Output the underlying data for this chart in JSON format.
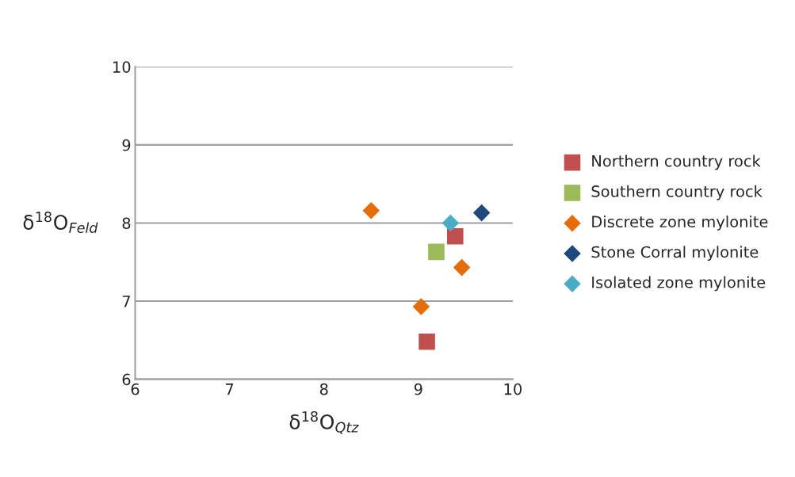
{
  "chart_data": {
    "type": "scatter",
    "xlabel": "δ$^{18}$O$_{Qtz}$",
    "ylabel": "δ$^{18}$O$_{Feld}$",
    "xlim": [
      6,
      10
    ],
    "xticks": [
      6,
      7,
      8,
      9,
      10
    ],
    "ylim": [
      6,
      10
    ],
    "yticks": [
      6,
      7,
      8,
      9,
      10
    ],
    "grid": "y",
    "legend": "right",
    "series": [
      {
        "name": "Northern country rock",
        "color": "#c0504d",
        "marker": "square",
        "x": [
          9.39,
          9.09
        ],
        "values": [
          7.83,
          6.48
        ]
      },
      {
        "name": "Southern country rock",
        "color": "#9bbb59",
        "marker": "square",
        "x": [
          9.19
        ],
        "values": [
          7.63
        ]
      },
      {
        "name": "Discrete zone mylonite",
        "color": "#e46c0a",
        "marker": "diamond",
        "x": [
          8.5,
          9.03,
          9.46
        ],
        "values": [
          8.16,
          6.93,
          7.43
        ]
      },
      {
        "name": "Stone Corral mylonite",
        "color": "#1f497d",
        "marker": "diamond",
        "x": [
          9.67
        ],
        "values": [
          8.13
        ]
      },
      {
        "name": "Isolated zone mylonite",
        "color": "#4bacc6",
        "marker": "diamond",
        "x": [
          9.34
        ],
        "values": [
          8.0
        ]
      }
    ]
  }
}
